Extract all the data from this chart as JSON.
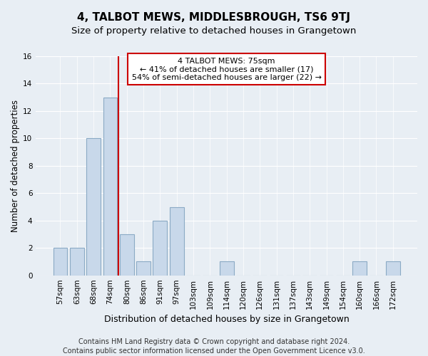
{
  "title": "4, TALBOT MEWS, MIDDLESBROUGH, TS6 9TJ",
  "subtitle": "Size of property relative to detached houses in Grangetown",
  "xlabel": "Distribution of detached houses by size in Grangetown",
  "ylabel": "Number of detached properties",
  "bar_color": "#c8d8ea",
  "bar_edge_color": "#8baac5",
  "categories": [
    "57sqm",
    "63sqm",
    "68sqm",
    "74sqm",
    "80sqm",
    "86sqm",
    "91sqm",
    "97sqm",
    "103sqm",
    "109sqm",
    "114sqm",
    "120sqm",
    "126sqm",
    "131sqm",
    "137sqm",
    "143sqm",
    "149sqm",
    "154sqm",
    "160sqm",
    "166sqm",
    "172sqm"
  ],
  "values": [
    2,
    2,
    10,
    13,
    3,
    1,
    4,
    5,
    0,
    0,
    1,
    0,
    0,
    0,
    0,
    0,
    0,
    0,
    1,
    0,
    1
  ],
  "red_line_x": 3.5,
  "annotation_line1": "4 TALBOT MEWS: 75sqm",
  "annotation_line2": "← 41% of detached houses are smaller (17)",
  "annotation_line3": "54% of semi-detached houses are larger (22) →",
  "annotation_box_color": "#ffffff",
  "annotation_box_edge": "#cc0000",
  "red_line_color": "#cc0000",
  "ylim": [
    0,
    16
  ],
  "yticks": [
    0,
    2,
    4,
    6,
    8,
    10,
    12,
    14,
    16
  ],
  "footnote_line1": "Contains HM Land Registry data © Crown copyright and database right 2024.",
  "footnote_line2": "Contains public sector information licensed under the Open Government Licence v3.0.",
  "background_color": "#e8eef4",
  "plot_background": "#e8eef4",
  "grid_color": "#ffffff",
  "title_fontsize": 11,
  "subtitle_fontsize": 9.5,
  "ylabel_fontsize": 8.5,
  "xlabel_fontsize": 9,
  "tick_fontsize": 7.5,
  "annotation_fontsize": 8,
  "footnote_fontsize": 7
}
